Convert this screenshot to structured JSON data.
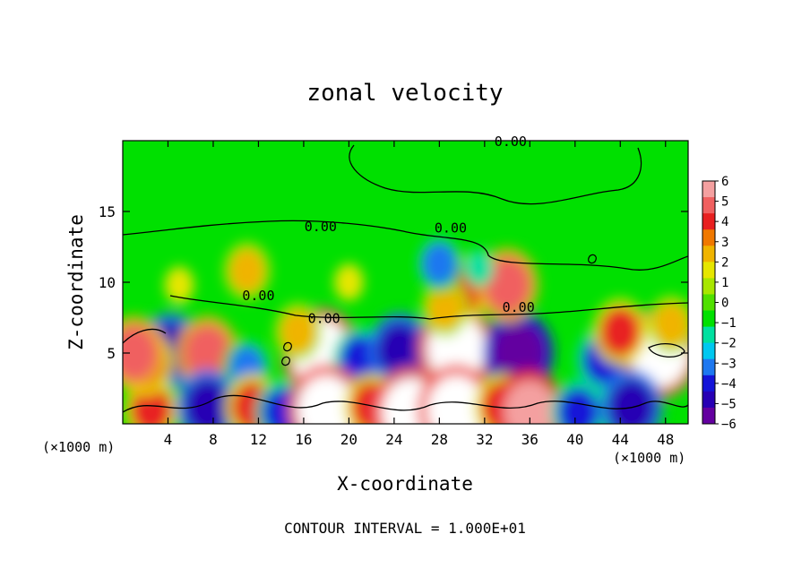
{
  "chart_data": {
    "type": "heatmap",
    "title": "zonal velocity",
    "xlabel": "X-coordinate",
    "ylabel": "Z-coordinate",
    "x_unit_left": "(×1000 m)",
    "x_unit_right": "(×1000 m)",
    "footer": "CONTOUR INTERVAL = 1.000E+01",
    "xlim": [
      0,
      50
    ],
    "ylim": [
      0,
      20
    ],
    "x_ticks": [
      4,
      8,
      12,
      16,
      20,
      24,
      28,
      32,
      36,
      40,
      44,
      48
    ],
    "y_ticks": [
      5,
      10,
      15
    ],
    "colorbar": {
      "min": -6,
      "max": 6,
      "tick_labels": [
        "6",
        "5",
        "4",
        "3",
        "2",
        "1",
        "0",
        "−1",
        "−2",
        "−3",
        "−4",
        "−5",
        "−6"
      ],
      "colors": [
        "#f4a0a0",
        "#f06060",
        "#e82020",
        "#f07800",
        "#f0b400",
        "#e6e600",
        "#a8e600",
        "#50e000",
        "#00e000",
        "#00e0a0",
        "#00c8f0",
        "#1e78f0",
        "#1414d8",
        "#2800b4",
        "#6400a0"
      ]
    },
    "contour_labels": [
      {
        "x": 34.3,
        "z": 20.0,
        "text": "0.00"
      },
      {
        "x": 17.5,
        "z": 14.0,
        "text": "0.00"
      },
      {
        "x": 29.0,
        "z": 13.9,
        "text": "0.00"
      },
      {
        "x": 12.0,
        "z": 9.1,
        "text": "0.00"
      },
      {
        "x": 17.8,
        "z": 7.5,
        "text": "0.00"
      },
      {
        "x": 35.0,
        "z": 8.3,
        "text": "0.00"
      }
    ],
    "features": [
      {
        "x": 4.2,
        "z": 5.2,
        "value": -5
      },
      {
        "x": 7.5,
        "z": 5.0,
        "value": 5
      },
      {
        "x": 11.0,
        "z": 4.0,
        "value": -3
      },
      {
        "x": 17.5,
        "z": 5.0,
        "value": 7
      },
      {
        "x": 21.0,
        "z": 4.5,
        "value": -4
      },
      {
        "x": 24.5,
        "z": 5.2,
        "value": -5
      },
      {
        "x": 29.5,
        "z": 5.3,
        "value": 7
      },
      {
        "x": 35.0,
        "z": 5.0,
        "value": -6
      },
      {
        "x": 42.5,
        "z": 4.5,
        "value": -4
      },
      {
        "x": 47.5,
        "z": 5.0,
        "value": 7
      },
      {
        "x": 2.5,
        "z": 1.0,
        "value": 4
      },
      {
        "x": 7.5,
        "z": 1.2,
        "value": -5
      },
      {
        "x": 11.5,
        "z": 1.2,
        "value": 4
      },
      {
        "x": 14.2,
        "z": 0.8,
        "value": -4
      },
      {
        "x": 18.0,
        "z": 1.0,
        "value": 7
      },
      {
        "x": 22.0,
        "z": 1.2,
        "value": 4
      },
      {
        "x": 25.5,
        "z": 0.8,
        "value": 7
      },
      {
        "x": 29.5,
        "z": 1.0,
        "value": 7
      },
      {
        "x": 33.5,
        "z": 1.2,
        "value": 4
      },
      {
        "x": 36.0,
        "z": 0.9,
        "value": 6
      },
      {
        "x": 40.3,
        "z": 0.8,
        "value": -4
      },
      {
        "x": 45.0,
        "z": 1.2,
        "value": -5
      },
      {
        "x": 2.0,
        "z": 4.3,
        "value": 4
      },
      {
        "x": 1.0,
        "z": 5.0,
        "value": 5
      },
      {
        "x": 30.0,
        "z": 9.5,
        "value": 4
      },
      {
        "x": 34.0,
        "z": 9.8,
        "value": 5
      },
      {
        "x": 28.5,
        "z": 8.2,
        "value": 3
      },
      {
        "x": 11.0,
        "z": 10.8,
        "value": 3
      },
      {
        "x": 5.0,
        "z": 9.8,
        "value": 2
      },
      {
        "x": 44.0,
        "z": 6.5,
        "value": 4
      },
      {
        "x": 48.5,
        "z": 7.0,
        "value": 3
      },
      {
        "x": 28.0,
        "z": 11.3,
        "value": -3
      },
      {
        "x": 31.5,
        "z": 11.0,
        "value": -2
      },
      {
        "x": 20.0,
        "z": 10.0,
        "value": 2
      },
      {
        "x": 15.5,
        "z": 6.5,
        "value": 3
      }
    ]
  }
}
